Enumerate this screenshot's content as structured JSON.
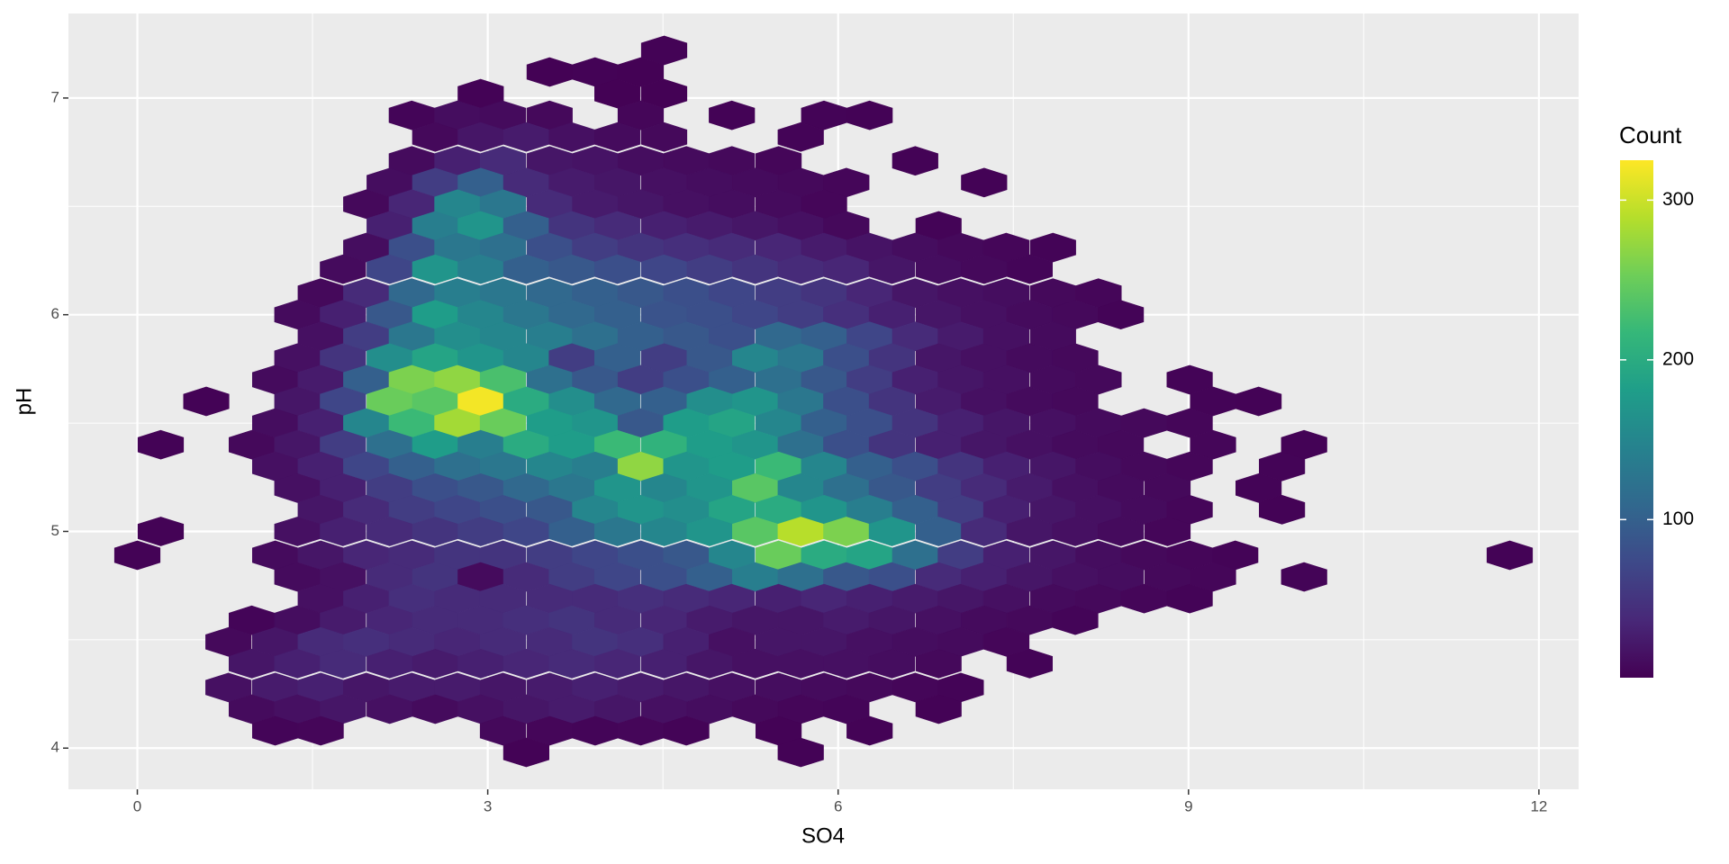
{
  "chart_data": {
    "type": "hexbin",
    "x_label": "SO4",
    "y_label": "pH",
    "legend_title": "Count",
    "xlim": [
      -0.59,
      12.34
    ],
    "ylim": [
      3.81,
      7.39
    ],
    "xticks": [
      0,
      3,
      6,
      9,
      12
    ],
    "yticks": [
      4,
      5,
      6,
      7
    ],
    "xminor": [
      1.5,
      4.5,
      7.5,
      10.5
    ],
    "yminor": [
      4.5,
      5.5,
      6.5
    ],
    "grid": true,
    "colormap": [
      "#440154",
      "#482878",
      "#3e4989",
      "#31688e",
      "#26828e",
      "#1f9e89",
      "#35b779",
      "#6ece58",
      "#b5de2b",
      "#fde725"
    ],
    "clim": [
      1,
      325
    ],
    "cticks": [
      100,
      200,
      300
    ],
    "rows": [
      {
        "y": 7.22,
        "x": [
          4.51
        ],
        "values": [
          3
        ]
      },
      {
        "y": 7.12,
        "x": [
          3.53,
          3.92,
          4.31
        ],
        "values": [
          2,
          3,
          2
        ]
      },
      {
        "y": 7.02,
        "x": [
          2.94,
          4.11,
          4.51
        ],
        "values": [
          3,
          2,
          2
        ]
      },
      {
        "y": 6.92,
        "x": [
          2.35,
          2.74,
          3.13,
          3.53,
          4.31,
          5.09,
          5.88,
          6.27
        ],
        "values": [
          5,
          12,
          10,
          8,
          6,
          3,
          4,
          3
        ]
      },
      {
        "y": 6.82,
        "x": [
          2.55,
          2.94,
          3.33,
          3.72,
          4.11,
          4.51,
          5.68
        ],
        "values": [
          8,
          20,
          25,
          15,
          10,
          8,
          4
        ]
      },
      {
        "y": 6.71,
        "x": [
          2.35,
          2.74,
          3.13,
          3.53,
          3.92,
          4.31,
          4.7,
          5.09,
          5.49,
          6.66
        ],
        "values": [
          10,
          30,
          40,
          20,
          18,
          12,
          10,
          8,
          6,
          3
        ]
      },
      {
        "y": 6.61,
        "x": [
          2.16,
          2.55,
          2.94,
          3.33,
          3.72,
          4.11,
          4.51,
          4.9,
          5.29,
          5.68,
          6.07,
          7.25
        ],
        "values": [
          12,
          60,
          100,
          40,
          25,
          20,
          15,
          12,
          10,
          8,
          6,
          3
        ]
      },
      {
        "y": 6.51,
        "x": [
          1.96,
          2.35,
          2.74,
          3.13,
          3.53,
          3.92,
          4.31,
          4.7,
          5.09,
          5.49,
          5.88
        ],
        "values": [
          8,
          35,
          150,
          130,
          40,
          25,
          20,
          15,
          12,
          10,
          6
        ]
      },
      {
        "y": 6.41,
        "x": [
          2.16,
          2.55,
          2.94,
          3.33,
          3.72,
          4.11,
          4.51,
          4.9,
          5.29,
          5.68,
          6.07,
          6.86
        ],
        "values": [
          30,
          140,
          170,
          100,
          50,
          40,
          30,
          25,
          20,
          15,
          8,
          4
        ]
      },
      {
        "y": 6.31,
        "x": [
          1.96,
          2.35,
          2.74,
          3.13,
          3.53,
          3.92,
          4.31,
          4.7,
          5.09,
          5.49,
          5.88,
          6.27,
          6.66,
          7.05,
          7.44,
          7.84
        ],
        "values": [
          12,
          80,
          130,
          120,
          80,
          60,
          50,
          45,
          40,
          35,
          25,
          18,
          12,
          8,
          6,
          4
        ]
      },
      {
        "y": 6.21,
        "x": [
          1.76,
          2.16,
          2.55,
          2.94,
          3.33,
          3.72,
          4.11,
          4.51,
          4.9,
          5.29,
          5.68,
          6.07,
          6.46,
          6.86,
          7.25,
          7.64
        ],
        "values": [
          10,
          70,
          170,
          140,
          100,
          90,
          80,
          70,
          60,
          50,
          40,
          35,
          20,
          12,
          8,
          5
        ]
      },
      {
        "y": 6.1,
        "x": [
          1.57,
          1.96,
          2.35,
          2.74,
          3.13,
          3.53,
          3.92,
          4.31,
          4.7,
          5.09,
          5.49,
          5.88,
          6.27,
          6.66,
          7.05,
          7.44,
          7.84,
          8.23
        ],
        "values": [
          8,
          40,
          110,
          140,
          130,
          110,
          100,
          90,
          80,
          70,
          60,
          50,
          35,
          20,
          15,
          12,
          8,
          6
        ]
      },
      {
        "y": 6.0,
        "x": [
          1.37,
          1.76,
          2.16,
          2.55,
          2.94,
          3.33,
          3.72,
          4.11,
          4.51,
          4.9,
          5.29,
          5.68,
          6.07,
          6.46,
          6.86,
          7.25,
          7.64,
          8.03,
          8.42
        ],
        "values": [
          10,
          30,
          90,
          180,
          150,
          130,
          110,
          100,
          85,
          80,
          70,
          60,
          45,
          30,
          20,
          15,
          10,
          8,
          4
        ]
      },
      {
        "y": 5.9,
        "x": [
          1.57,
          1.96,
          2.35,
          2.74,
          3.13,
          3.53,
          3.92,
          4.31,
          4.7,
          5.09,
          5.49,
          5.88,
          6.27,
          6.66,
          7.05,
          7.44,
          7.84
        ],
        "values": [
          15,
          60,
          130,
          160,
          150,
          140,
          120,
          100,
          90,
          80,
          110,
          100,
          70,
          40,
          25,
          15,
          10
        ]
      },
      {
        "y": 5.8,
        "x": [
          1.37,
          1.76,
          2.16,
          2.55,
          2.94,
          3.33,
          3.72,
          4.11,
          4.51,
          4.9,
          5.29,
          5.68,
          6.07,
          6.46,
          6.86,
          7.25,
          7.64,
          8.03
        ],
        "values": [
          15,
          50,
          160,
          190,
          170,
          150,
          60,
          100,
          60,
          90,
          150,
          130,
          80,
          50,
          20,
          15,
          10,
          8
        ]
      },
      {
        "y": 5.7,
        "x": [
          1.18,
          1.57,
          1.96,
          2.35,
          2.74,
          3.13,
          3.53,
          3.92,
          4.31,
          4.7,
          5.09,
          5.49,
          5.88,
          6.27,
          6.66,
          7.05,
          7.44,
          7.84,
          8.23,
          9.01
        ],
        "values": [
          10,
          25,
          100,
          260,
          270,
          230,
          120,
          90,
          60,
          80,
          100,
          120,
          90,
          60,
          30,
          20,
          15,
          10,
          8,
          4
        ]
      },
      {
        "y": 5.6,
        "x": [
          0.59,
          1.37,
          1.76,
          2.16,
          2.55,
          2.94,
          3.33,
          3.72,
          4.11,
          4.51,
          4.9,
          5.29,
          5.68,
          6.07,
          6.46,
          6.86,
          7.25,
          7.64,
          8.03,
          9.21,
          9.6
        ],
        "values": [
          3,
          20,
          70,
          250,
          240,
          320,
          200,
          160,
          110,
          100,
          160,
          170,
          130,
          80,
          50,
          25,
          15,
          10,
          8,
          4,
          3
        ]
      },
      {
        "y": 5.5,
        "x": [
          1.18,
          1.57,
          1.96,
          2.35,
          2.74,
          3.13,
          3.53,
          3.92,
          4.31,
          4.7,
          5.09,
          5.49,
          5.88,
          6.27,
          6.66,
          7.05,
          7.44,
          7.84,
          8.23,
          8.62,
          9.01
        ],
        "values": [
          12,
          30,
          150,
          220,
          280,
          250,
          180,
          170,
          90,
          180,
          190,
          150,
          100,
          80,
          50,
          30,
          20,
          15,
          10,
          8,
          6
        ]
      },
      {
        "y": 5.4,
        "x": [
          0.2,
          0.98,
          1.37,
          1.76,
          2.16,
          2.55,
          2.94,
          3.33,
          3.72,
          4.11,
          4.51,
          4.9,
          5.29,
          5.68,
          6.07,
          6.46,
          6.86,
          7.25,
          7.64,
          8.03,
          8.42,
          9.21,
          9.99
        ],
        "values": [
          3,
          8,
          20,
          60,
          120,
          180,
          140,
          200,
          180,
          220,
          210,
          180,
          170,
          120,
          80,
          50,
          30,
          20,
          15,
          10,
          8,
          6,
          3
        ]
      },
      {
        "y": 5.3,
        "x": [
          1.18,
          1.57,
          1.96,
          2.35,
          2.74,
          3.13,
          3.53,
          3.92,
          4.31,
          4.7,
          5.09,
          5.49,
          5.88,
          6.27,
          6.66,
          7.05,
          7.44,
          7.84,
          8.23,
          8.62,
          9.01,
          9.8
        ],
        "values": [
          15,
          30,
          70,
          100,
          120,
          130,
          150,
          140,
          270,
          170,
          180,
          220,
          150,
          100,
          80,
          50,
          30,
          20,
          12,
          8,
          6,
          4
        ]
      },
      {
        "y": 5.2,
        "x": [
          1.37,
          1.76,
          2.16,
          2.55,
          2.94,
          3.33,
          3.72,
          4.11,
          4.51,
          4.9,
          5.29,
          5.68,
          6.07,
          6.46,
          6.86,
          7.25,
          7.64,
          8.03,
          8.42,
          8.82,
          9.6
        ],
        "values": [
          15,
          30,
          60,
          80,
          90,
          110,
          130,
          170,
          150,
          170,
          240,
          150,
          120,
          90,
          60,
          40,
          25,
          15,
          10,
          8,
          4
        ]
      },
      {
        "y": 5.1,
        "x": [
          1.57,
          1.96,
          2.35,
          2.74,
          3.13,
          3.53,
          3.92,
          4.31,
          4.7,
          5.09,
          5.49,
          5.88,
          6.27,
          6.66,
          7.05,
          7.44,
          7.84,
          8.23,
          8.62,
          9.01,
          9.8
        ],
        "values": [
          20,
          40,
          60,
          70,
          80,
          90,
          150,
          170,
          160,
          190,
          200,
          170,
          140,
          100,
          60,
          30,
          20,
          15,
          10,
          6,
          3
        ]
      },
      {
        "y": 5.0,
        "x": [
          0.2,
          1.37,
          1.76,
          2.16,
          2.55,
          2.94,
          3.33,
          3.72,
          4.11,
          4.51,
          4.9,
          5.29,
          5.68,
          6.07,
          6.46,
          6.86,
          7.25,
          7.64,
          8.03,
          8.42,
          8.82
        ],
        "values": [
          3,
          15,
          30,
          40,
          50,
          60,
          70,
          100,
          130,
          150,
          170,
          240,
          290,
          260,
          170,
          100,
          40,
          20,
          15,
          10,
          6
        ]
      },
      {
        "y": 4.89,
        "x": [
          0,
          1.18,
          1.57,
          1.96,
          2.35,
          2.74,
          3.13,
          3.53,
          3.92,
          4.31,
          4.7,
          5.09,
          5.49,
          5.88,
          6.27,
          6.66,
          7.05,
          7.44,
          7.84,
          8.23,
          8.62,
          9.01,
          9.4,
          11.75
        ],
        "values": [
          3,
          10,
          20,
          35,
          40,
          50,
          50,
          60,
          70,
          80,
          90,
          150,
          250,
          200,
          190,
          120,
          60,
          30,
          20,
          12,
          8,
          6,
          4,
          3
        ]
      },
      {
        "y": 4.79,
        "x": [
          1.37,
          1.76,
          2.16,
          2.55,
          2.94,
          3.33,
          3.72,
          4.11,
          4.51,
          4.9,
          5.29,
          5.68,
          6.07,
          6.46,
          6.86,
          7.25,
          7.64,
          8.03,
          8.42,
          8.82,
          9.21,
          9.99
        ],
        "values": [
          10,
          15,
          40,
          50,
          10,
          40,
          60,
          70,
          80,
          100,
          140,
          120,
          90,
          80,
          40,
          30,
          20,
          15,
          12,
          8,
          6,
          4
        ]
      },
      {
        "y": 4.69,
        "x": [
          1.57,
          1.96,
          2.35,
          2.74,
          3.13,
          3.53,
          3.92,
          4.31,
          4.7,
          5.09,
          5.49,
          5.88,
          6.27,
          6.66,
          7.05,
          7.44,
          7.84,
          8.23,
          8.62,
          9.01
        ],
        "values": [
          15,
          30,
          45,
          40,
          40,
          40,
          40,
          45,
          40,
          35,
          30,
          35,
          30,
          25,
          20,
          15,
          10,
          8,
          6,
          4
        ]
      },
      {
        "y": 4.59,
        "x": [
          0.98,
          1.37,
          1.76,
          2.16,
          2.55,
          2.94,
          3.33,
          3.72,
          4.11,
          4.51,
          4.9,
          5.29,
          5.68,
          6.07,
          6.46,
          6.86,
          7.25,
          7.64,
          8.03
        ],
        "values": [
          5,
          12,
          25,
          35,
          40,
          40,
          45,
          50,
          40,
          35,
          25,
          20,
          20,
          25,
          20,
          15,
          10,
          8,
          5
        ]
      },
      {
        "y": 4.49,
        "x": [
          0.78,
          1.18,
          1.57,
          1.96,
          2.35,
          2.74,
          3.13,
          3.53,
          3.92,
          4.31,
          4.7,
          5.09,
          5.49,
          5.88,
          6.27,
          6.66,
          7.05,
          7.44
        ],
        "values": [
          8,
          20,
          40,
          45,
          40,
          35,
          40,
          40,
          50,
          45,
          30,
          15,
          20,
          20,
          15,
          12,
          10,
          6
        ]
      },
      {
        "y": 4.39,
        "x": [
          0.98,
          1.37,
          1.76,
          2.16,
          2.55,
          2.94,
          3.33,
          3.72,
          4.11,
          4.51,
          4.9,
          5.29,
          5.68,
          6.07,
          6.46,
          6.86,
          7.64
        ],
        "values": [
          20,
          30,
          40,
          30,
          25,
          30,
          35,
          40,
          35,
          30,
          20,
          15,
          15,
          15,
          12,
          8,
          4
        ]
      },
      {
        "y": 4.28,
        "x": [
          0.78,
          1.18,
          1.57,
          1.96,
          2.35,
          2.74,
          3.13,
          3.53,
          3.92,
          4.31,
          4.7,
          5.09,
          5.49,
          5.88,
          6.27,
          6.66,
          7.05
        ],
        "values": [
          15,
          25,
          30,
          20,
          25,
          25,
          20,
          25,
          30,
          25,
          20,
          15,
          12,
          10,
          8,
          6,
          4
        ]
      },
      {
        "y": 4.18,
        "x": [
          0.98,
          1.37,
          1.76,
          2.16,
          2.55,
          2.94,
          3.33,
          3.72,
          4.11,
          4.51,
          4.9,
          5.29,
          5.68,
          6.07,
          6.86
        ],
        "values": [
          10,
          15,
          20,
          15,
          10,
          15,
          20,
          25,
          20,
          15,
          12,
          8,
          6,
          5,
          3
        ]
      },
      {
        "y": 4.08,
        "x": [
          1.18,
          1.57,
          3.13,
          3.53,
          3.92,
          4.31,
          4.7,
          5.49,
          6.27
        ],
        "values": [
          5,
          6,
          8,
          6,
          5,
          6,
          4,
          3,
          3
        ]
      },
      {
        "y": 3.98,
        "x": [
          3.33,
          5.68
        ],
        "values": [
          3,
          3
        ]
      }
    ]
  }
}
